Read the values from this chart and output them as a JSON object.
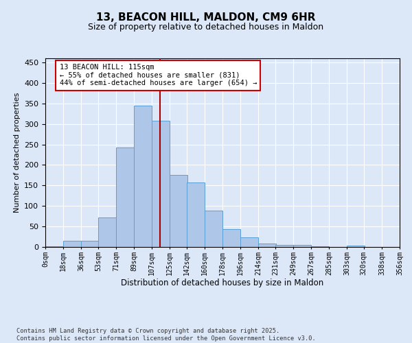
{
  "title": "13, BEACON HILL, MALDON, CM9 6HR",
  "subtitle": "Size of property relative to detached houses in Maldon",
  "xlabel": "Distribution of detached houses by size in Maldon",
  "ylabel": "Number of detached properties",
  "bar_color": "#aec6e8",
  "bar_edge_color": "#5a9fd4",
  "bg_color": "#dce8f8",
  "grid_color": "#ffffff",
  "fig_bg_color": "#dce8f8",
  "vline_x": 115,
  "vline_color": "#aa0000",
  "annotation_text": "13 BEACON HILL: 115sqm\n← 55% of detached houses are smaller (831)\n44% of semi-detached houses are larger (654) →",
  "annotation_box_color": "#cc0000",
  "bins_left": [
    0,
    18,
    36,
    53,
    71,
    89,
    107,
    125,
    142,
    160,
    178,
    196,
    214,
    231,
    249,
    267,
    285,
    303,
    320,
    338,
    356
  ],
  "bin_width": 18,
  "bar_heights": [
    2,
    15,
    15,
    72,
    243,
    345,
    307,
    175,
    158,
    88,
    44,
    23,
    8,
    5,
    5,
    2,
    0,
    4,
    0,
    0
  ],
  "ylim": [
    0,
    460
  ],
  "yticks": [
    0,
    50,
    100,
    150,
    200,
    250,
    300,
    350,
    400,
    450
  ],
  "footnote": "Contains HM Land Registry data © Crown copyright and database right 2025.\nContains public sector information licensed under the Open Government Licence v3.0.",
  "tick_labels": [
    "0sqm",
    "18sqm",
    "36sqm",
    "53sqm",
    "71sqm",
    "89sqm",
    "107sqm",
    "125sqm",
    "142sqm",
    "160sqm",
    "178sqm",
    "196sqm",
    "214sqm",
    "231sqm",
    "249sqm",
    "267sqm",
    "285sqm",
    "303sqm",
    "320sqm",
    "338sqm",
    "356sqm"
  ]
}
